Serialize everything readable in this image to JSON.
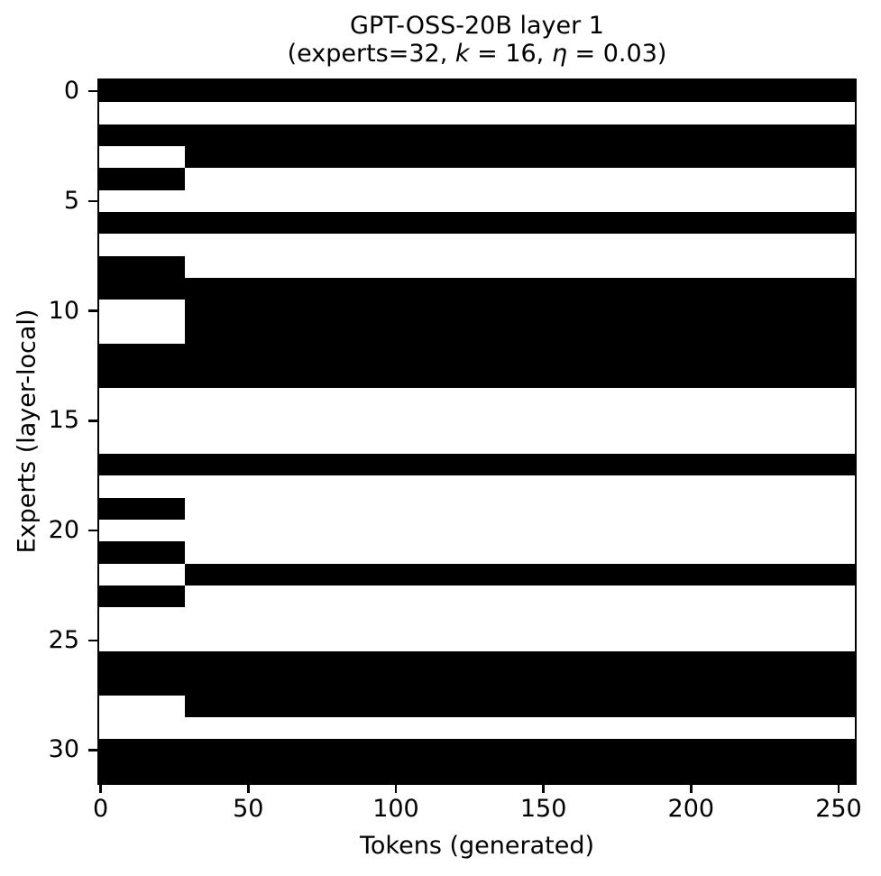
{
  "figure": {
    "subtitle_parts": {
      "p1": "(experts=32, ",
      "k_var": "k",
      "p2": " = 16, ",
      "eta_var": "η",
      "p3": " = 0.03)"
    }
  },
  "chart_data": {
    "type": "heatmap",
    "title": "GPT-OSS-20B layer 1",
    "subtitle": "(experts=32, k = 16, η = 0.03)",
    "xlabel": "Tokens (generated)",
    "ylabel": "Experts (layer-local)",
    "x_ticks": [
      0,
      50,
      100,
      150,
      200,
      250
    ],
    "y_ticks": [
      0,
      5,
      10,
      15,
      20,
      25,
      30
    ],
    "n_tokens": 256,
    "n_experts": 32,
    "experts": 32,
    "k": 16,
    "eta": 0.03,
    "on_color": "#000000",
    "off_color": "#ffffff",
    "grid": false,
    "legend": false,
    "transition_token": 29,
    "experts_active_before_transition": [
      0,
      2,
      4,
      6,
      8,
      9,
      12,
      13,
      17,
      19,
      21,
      23,
      26,
      27,
      30,
      31
    ],
    "experts_active_after_transition": [
      0,
      2,
      3,
      6,
      9,
      10,
      11,
      12,
      13,
      17,
      22,
      26,
      27,
      28,
      30,
      31
    ],
    "rows": [
      {
        "expert": 0,
        "early": 1,
        "late": 1
      },
      {
        "expert": 1,
        "early": 0,
        "late": 0
      },
      {
        "expert": 2,
        "early": 1,
        "late": 1
      },
      {
        "expert": 3,
        "early": 0,
        "late": 1
      },
      {
        "expert": 4,
        "early": 1,
        "late": 0
      },
      {
        "expert": 5,
        "early": 0,
        "late": 0
      },
      {
        "expert": 6,
        "early": 1,
        "late": 1
      },
      {
        "expert": 7,
        "early": 0,
        "late": 0
      },
      {
        "expert": 8,
        "early": 1,
        "late": 0
      },
      {
        "expert": 9,
        "early": 1,
        "late": 1
      },
      {
        "expert": 10,
        "early": 0,
        "late": 1
      },
      {
        "expert": 11,
        "early": 0,
        "late": 1
      },
      {
        "expert": 12,
        "early": 1,
        "late": 1
      },
      {
        "expert": 13,
        "early": 1,
        "late": 1
      },
      {
        "expert": 14,
        "early": 0,
        "late": 0
      },
      {
        "expert": 15,
        "early": 0,
        "late": 0
      },
      {
        "expert": 16,
        "early": 0,
        "late": 0
      },
      {
        "expert": 17,
        "early": 1,
        "late": 1
      },
      {
        "expert": 18,
        "early": 0,
        "late": 0
      },
      {
        "expert": 19,
        "early": 1,
        "late": 0
      },
      {
        "expert": 20,
        "early": 0,
        "late": 0
      },
      {
        "expert": 21,
        "early": 1,
        "late": 0
      },
      {
        "expert": 22,
        "early": 0,
        "late": 1
      },
      {
        "expert": 23,
        "early": 1,
        "late": 0
      },
      {
        "expert": 24,
        "early": 0,
        "late": 0
      },
      {
        "expert": 25,
        "early": 0,
        "late": 0
      },
      {
        "expert": 26,
        "early": 1,
        "late": 1
      },
      {
        "expert": 27,
        "early": 1,
        "late": 1
      },
      {
        "expert": 28,
        "early": 0,
        "late": 1
      },
      {
        "expert": 29,
        "early": 0,
        "late": 0
      },
      {
        "expert": 30,
        "early": 1,
        "late": 1
      },
      {
        "expert": 31,
        "early": 1,
        "late": 1
      }
    ]
  }
}
